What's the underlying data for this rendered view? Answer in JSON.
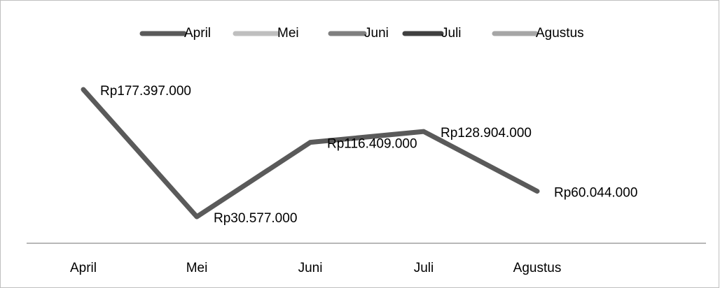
{
  "chart_data": {
    "type": "line",
    "categories": [
      "April",
      "Mei",
      "Juni",
      "Juli",
      "Agustus"
    ],
    "values": [
      177397000,
      30577000,
      116409000,
      128904000,
      60044000
    ],
    "value_labels": [
      "Rp177.397.000",
      "Rp30.577.000",
      "Rp116.409.000",
      "Rp128.904.000",
      "Rp60.044.000"
    ],
    "color": "#5a5a5a",
    "legend_colors": [
      "#5a5a5a",
      "#bfbfbf",
      "#7f7f7f",
      "#404040",
      "#a6a6a6"
    ],
    "legend": "top",
    "ylim": [
      0,
      200000000
    ]
  }
}
